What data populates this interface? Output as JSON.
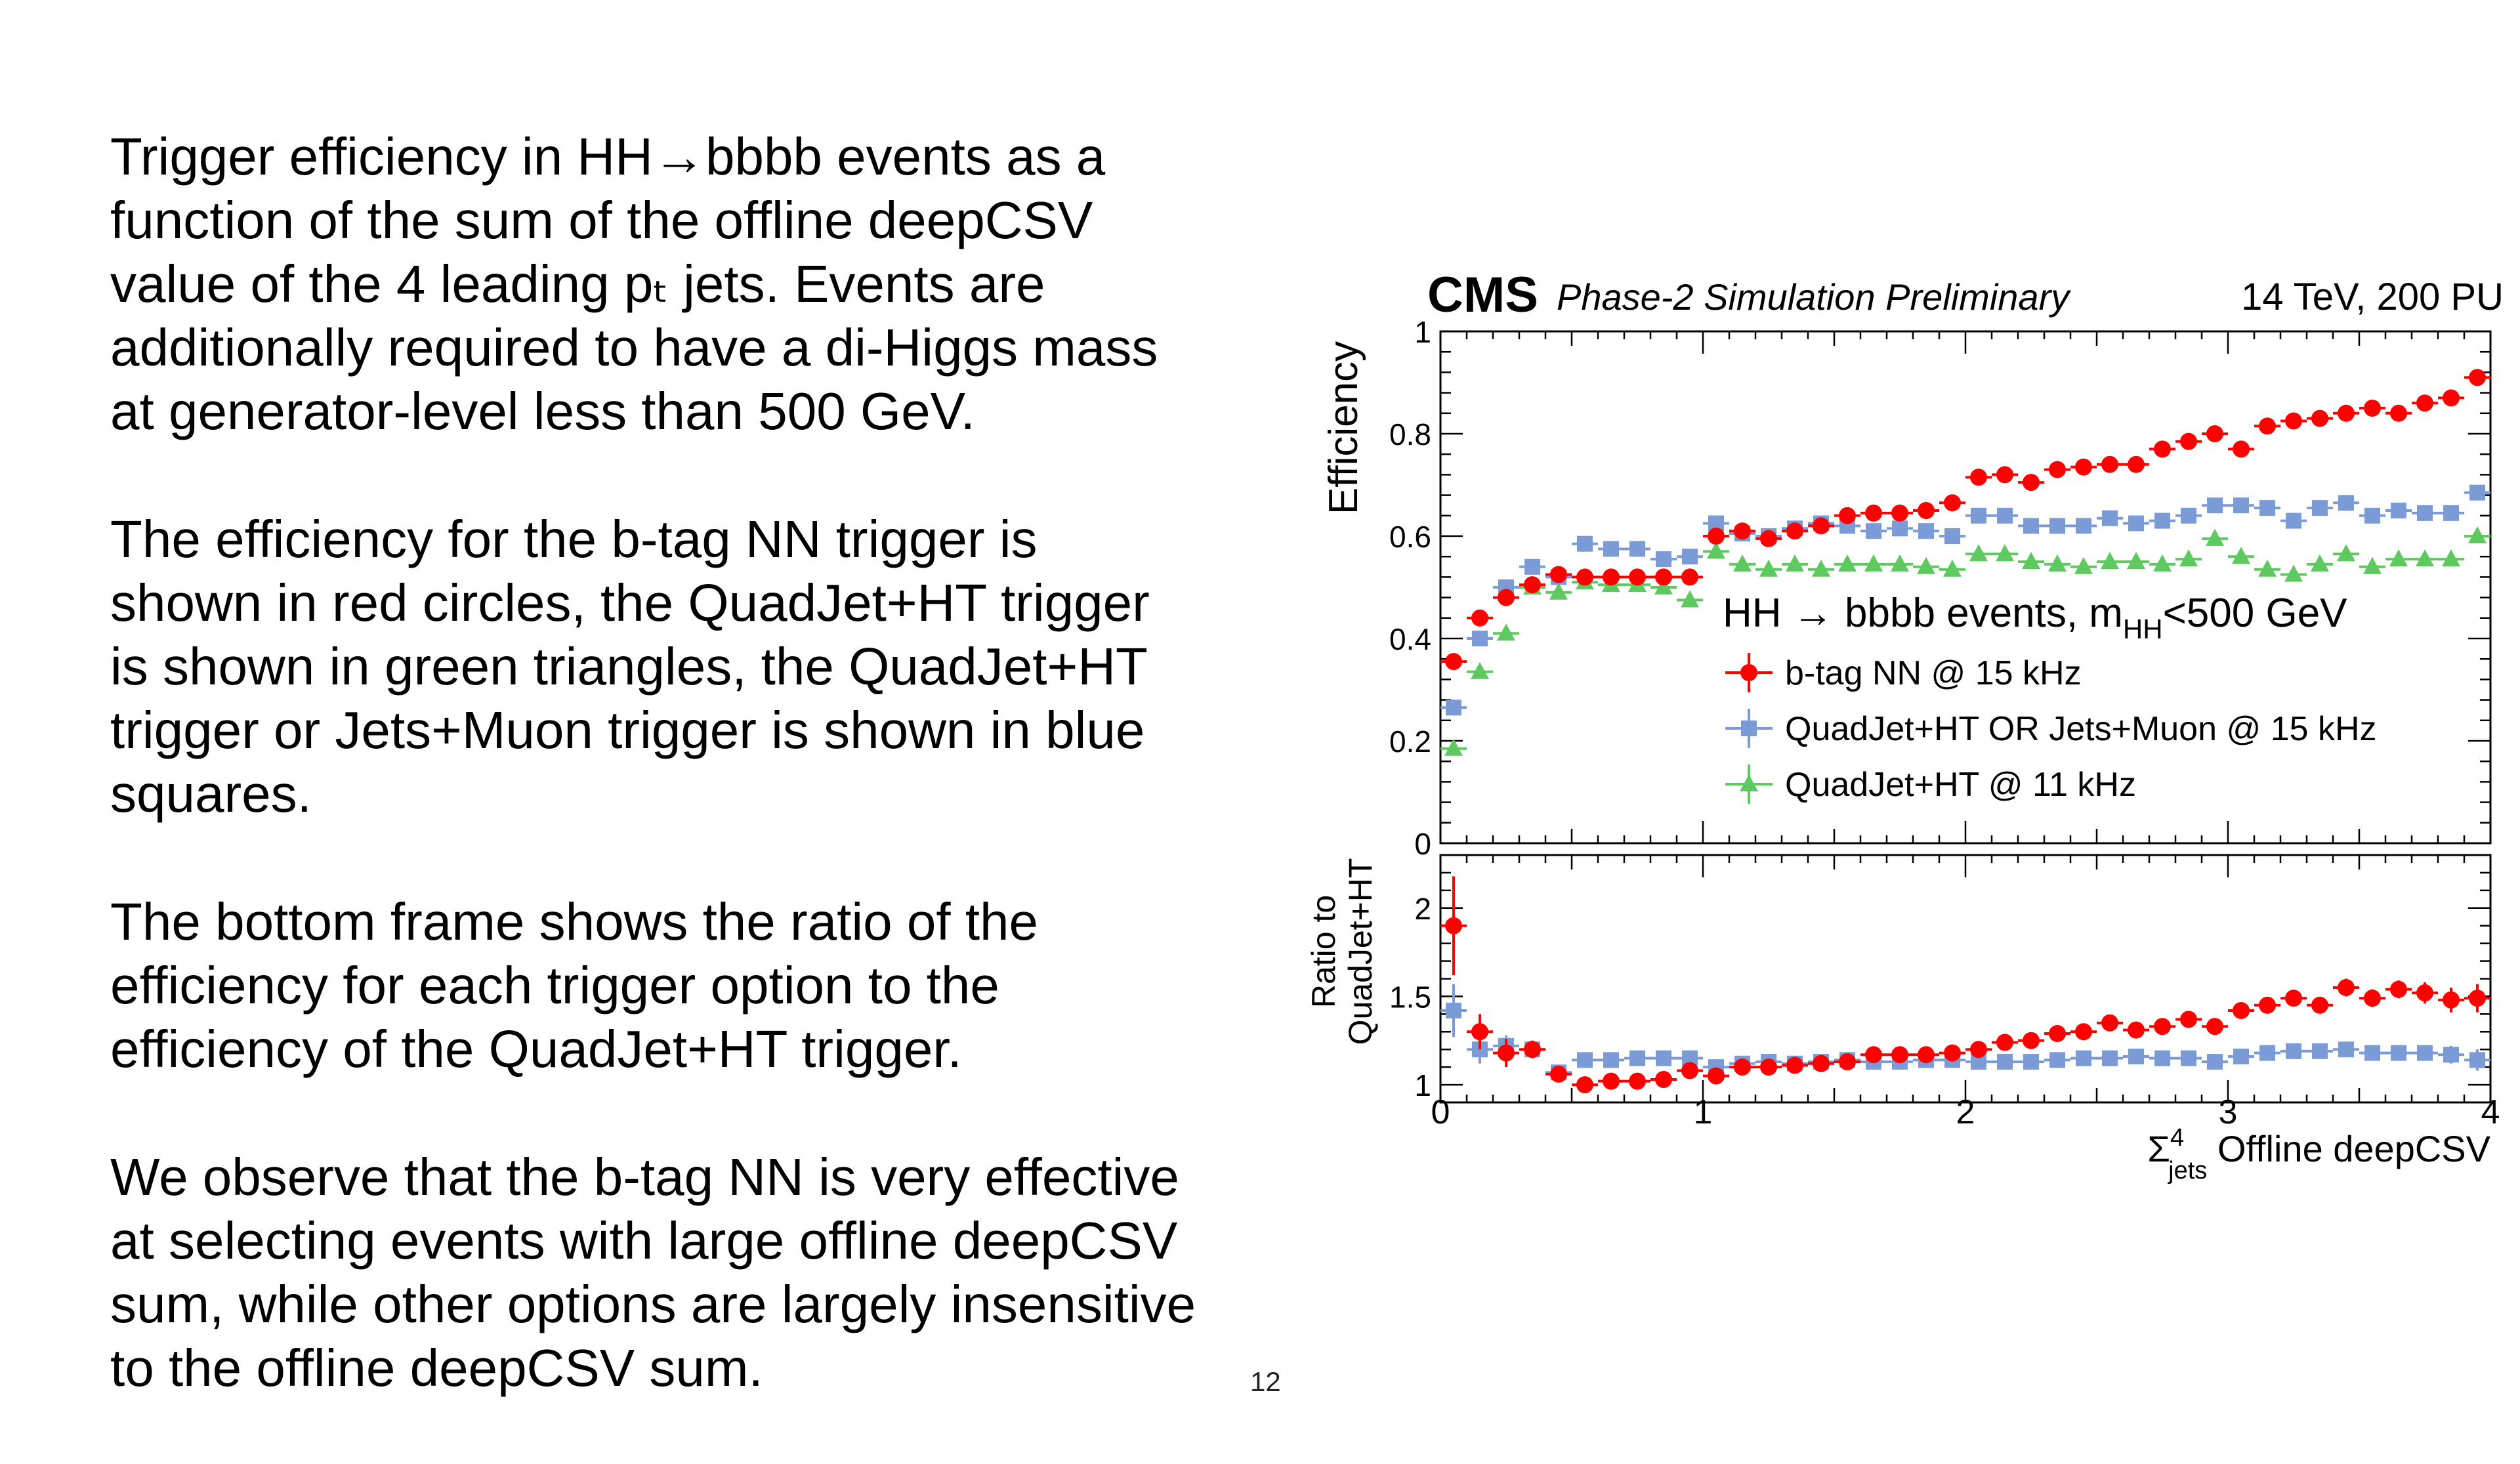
{
  "slide": {
    "number": "12",
    "paragraphs": [
      [
        "Trigger efficiency in HH→bbbb events as a",
        "function of the sum of the offline deepCSV",
        "value of the 4 leading pₜ jets. Events are",
        "additionally required to have a di-Higgs mass",
        "at generator-level less than 500 GeV."
      ],
      [
        "The efficiency for the b-tag NN trigger is",
        "shown in red circles, the QuadJet+HT trigger",
        "is shown in green triangles, the QuadJet+HT",
        "trigger or Jets+Muon trigger is shown in blue",
        "squares."
      ],
      [
        "The bottom frame shows the ratio of the",
        "efficiency for each trigger option to the",
        "efficiency of the QuadJet+HT trigger."
      ],
      [
        "We observe that the b-tag NN is very effective",
        "at selecting events with large offline deepCSV",
        "sum, while other options are largely insensitive",
        "to the offline deepCSV sum."
      ]
    ]
  },
  "chart_data": {
    "type": "scatter",
    "header": {
      "cms": "CMS",
      "status": "Phase-2 Simulation Preliminary",
      "energy": "14 TeV, 200 PU"
    },
    "top_panel": {
      "ylabel": "Efficiency",
      "ylim": [
        0,
        1
      ],
      "yticks": [
        "0",
        "0.2",
        "0.4",
        "0.6",
        "0.8",
        "1"
      ]
    },
    "bottom_panel": {
      "ylabel_lines": [
        "Ratio to",
        "QuadJet+HT"
      ],
      "ylim": [
        0.9,
        2.3
      ],
      "yticks": [
        "1",
        "1.5",
        "2"
      ]
    },
    "xlim": [
      0,
      4
    ],
    "xticks": [
      "0",
      "1",
      "2",
      "3",
      "4"
    ],
    "xlabel": {
      "sigma": "Σ",
      "sup": "4",
      "sub": "jets",
      "rest": " Offline deepCSV"
    },
    "legend": {
      "placement": "center-right",
      "title": "HH → bbbb events, m",
      "title_sub": "HH",
      "title_rest": "<500 GeV"
    },
    "x": [
      0.05,
      0.15,
      0.25,
      0.35,
      0.45,
      0.55,
      0.65,
      0.75,
      0.85,
      0.95,
      1.05,
      1.15,
      1.25,
      1.35,
      1.45,
      1.55,
      1.65,
      1.75,
      1.85,
      1.95,
      2.05,
      2.15,
      2.25,
      2.35,
      2.45,
      2.55,
      2.65,
      2.75,
      2.85,
      2.95,
      3.05,
      3.15,
      3.25,
      3.35,
      3.45,
      3.55,
      3.65,
      3.75,
      3.85,
      3.95
    ],
    "series": [
      {
        "name": "b-tag NN @ 15 kHz",
        "color": "#ff0000",
        "marker": "circle",
        "values": [
          0.355,
          0.44,
          0.48,
          0.505,
          0.525,
          0.52,
          0.52,
          0.52,
          0.52,
          0.52,
          0.6,
          0.61,
          0.595,
          0.61,
          0.62,
          0.64,
          0.645,
          0.645,
          0.65,
          0.665,
          0.715,
          0.72,
          0.705,
          0.73,
          0.735,
          0.74,
          0.74,
          0.77,
          0.785,
          0.8,
          0.77,
          0.815,
          0.825,
          0.83,
          0.84,
          0.85,
          0.84,
          0.86,
          0.87,
          0.91
        ],
        "ratio": [
          1.9,
          1.3,
          1.18,
          1.2,
          1.06,
          1.0,
          1.02,
          1.02,
          1.03,
          1.08,
          1.05,
          1.1,
          1.1,
          1.11,
          1.12,
          1.13,
          1.17,
          1.17,
          1.17,
          1.18,
          1.2,
          1.24,
          1.25,
          1.29,
          1.3,
          1.35,
          1.31,
          1.33,
          1.37,
          1.33,
          1.42,
          1.45,
          1.49,
          1.45,
          1.55,
          1.49,
          1.54,
          1.52,
          1.48,
          1.49
        ],
        "ratio_err": [
          0.28,
          0.1,
          0.08,
          0.05,
          0.04,
          0.03,
          0.03,
          0.03,
          0.03,
          0.03,
          0.03,
          0.03,
          0.03,
          0.03,
          0.03,
          0.03,
          0.03,
          0.03,
          0.03,
          0.03,
          0.03,
          0.03,
          0.03,
          0.03,
          0.03,
          0.03,
          0.03,
          0.03,
          0.03,
          0.03,
          0.03,
          0.04,
          0.04,
          0.04,
          0.05,
          0.05,
          0.05,
          0.06,
          0.07,
          0.08
        ]
      },
      {
        "name": "QuadJet+HT OR Jets+Muon @ 15 kHz",
        "color": "#7b9bd6",
        "marker": "square",
        "values": [
          0.265,
          0.4,
          0.5,
          0.54,
          0.52,
          0.585,
          0.575,
          0.575,
          0.555,
          0.56,
          0.625,
          0.605,
          0.6,
          0.615,
          0.625,
          0.62,
          0.61,
          0.615,
          0.61,
          0.6,
          0.64,
          0.64,
          0.62,
          0.62,
          0.62,
          0.635,
          0.625,
          0.63,
          0.64,
          0.66,
          0.66,
          0.655,
          0.63,
          0.655,
          0.665,
          0.64,
          0.65,
          0.645,
          0.645,
          0.685
        ],
        "ratio": [
          1.42,
          1.2,
          1.22,
          1.2,
          1.07,
          1.14,
          1.14,
          1.15,
          1.15,
          1.15,
          1.1,
          1.12,
          1.13,
          1.12,
          1.13,
          1.14,
          1.13,
          1.13,
          1.14,
          1.14,
          1.13,
          1.13,
          1.13,
          1.14,
          1.15,
          1.15,
          1.16,
          1.15,
          1.15,
          1.13,
          1.16,
          1.18,
          1.19,
          1.19,
          1.2,
          1.18,
          1.18,
          1.18,
          1.17,
          1.14
        ],
        "ratio_err": [
          0.15,
          0.08,
          0.06,
          0.04,
          0.03,
          0.03,
          0.03,
          0.03,
          0.03,
          0.03,
          0.03,
          0.03,
          0.03,
          0.03,
          0.03,
          0.03,
          0.03,
          0.03,
          0.03,
          0.03,
          0.03,
          0.03,
          0.03,
          0.03,
          0.03,
          0.03,
          0.03,
          0.03,
          0.03,
          0.03,
          0.03,
          0.03,
          0.03,
          0.03,
          0.03,
          0.03,
          0.04,
          0.04,
          0.05,
          0.06
        ]
      },
      {
        "name": "QuadJet+HT @ 11 kHz",
        "color": "#5ec95e",
        "marker": "triangle",
        "values": [
          0.185,
          0.335,
          0.41,
          0.5,
          0.49,
          0.51,
          0.505,
          0.505,
          0.5,
          0.475,
          0.57,
          0.545,
          0.535,
          0.545,
          0.535,
          0.545,
          0.545,
          0.545,
          0.54,
          0.535,
          0.565,
          0.565,
          0.55,
          0.545,
          0.54,
          0.55,
          0.55,
          0.545,
          0.555,
          0.595,
          0.56,
          0.535,
          0.525,
          0.545,
          0.565,
          0.54,
          0.555,
          0.555,
          0.555,
          0.6
        ]
      }
    ]
  }
}
